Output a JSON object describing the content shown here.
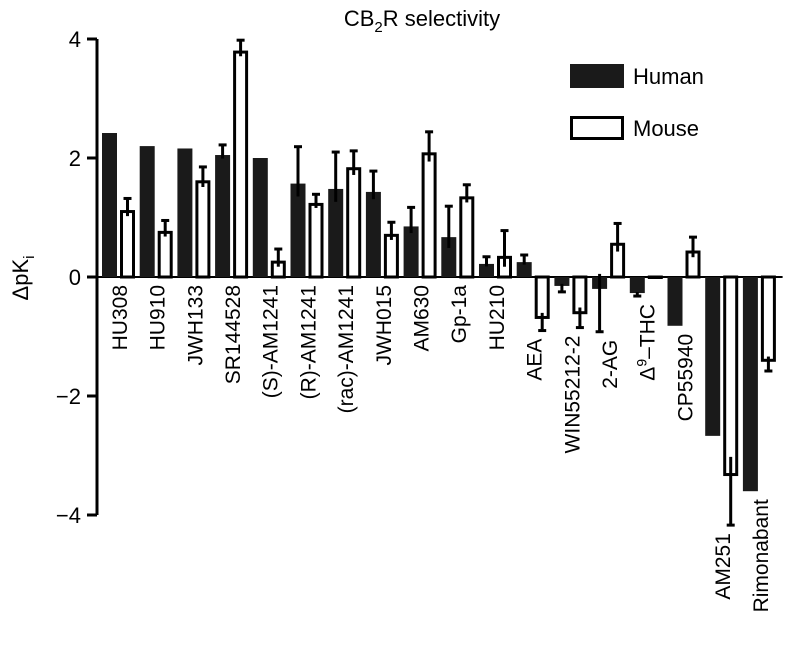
{
  "chart_data": {
    "type": "bar",
    "title_main": "CB",
    "title_sub": "2",
    "title_rest": "R selectivity",
    "ylabel_main": "ΔpK",
    "ylabel_sub": "i",
    "ylim": [
      -4,
      4
    ],
    "yticks": [
      4,
      2,
      0,
      -2,
      -4
    ],
    "ytick_labels": [
      "4",
      "2",
      "0",
      "−2",
      "−4"
    ],
    "categories": [
      "HU308",
      "HU910",
      "JWH133",
      "SR144528",
      "(S)-AM1241",
      "(R)-AM1241",
      "(rac)-AM1241",
      "JWH015",
      "AM630",
      "Gp-1a",
      "HU210",
      "AEA",
      "WIN55212-2",
      "2-AG",
      "THC",
      "CP55940",
      "AM251",
      "Rimonabant"
    ],
    "category_prefix": {
      "THC": {
        "main": "Δ",
        "sup": "9",
        "rest": "–THC"
      }
    },
    "series": [
      {
        "name": "Human",
        "fill": "#1a1a1a",
        "values": [
          2.42,
          2.2,
          2.16,
          2.05,
          2.0,
          1.57,
          1.48,
          1.43,
          0.85,
          0.67,
          0.22,
          0.25,
          -0.15,
          -0.2,
          -0.27,
          -0.82,
          -2.67,
          -3.6
        ],
        "errors": [
          0.0,
          0.0,
          0.0,
          0.17,
          0.0,
          0.62,
          0.62,
          0.35,
          0.32,
          0.52,
          0.12,
          0.12,
          0.1,
          0.72,
          0.05,
          0.0,
          0.0,
          0.0
        ]
      },
      {
        "name": "Mouse",
        "fill": "#ffffff",
        "values": [
          1.1,
          0.75,
          1.6,
          3.78,
          0.25,
          1.22,
          1.82,
          0.7,
          2.07,
          1.33,
          0.33,
          -0.68,
          -0.6,
          0.55,
          0.0,
          0.42,
          -3.32,
          -1.4
        ],
        "errors": [
          0.22,
          0.2,
          0.25,
          0.2,
          0.22,
          0.17,
          0.3,
          0.22,
          0.37,
          0.22,
          0.45,
          0.22,
          0.25,
          0.35,
          0.0,
          0.25,
          0.85,
          0.18
        ]
      }
    ],
    "legend": {
      "position": "top-right",
      "entries": [
        "Human",
        "Mouse"
      ]
    }
  }
}
